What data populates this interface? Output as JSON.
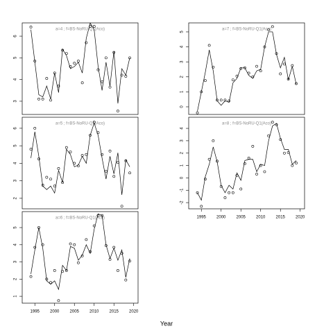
{
  "xlabel": "Year",
  "chart_data": [
    {
      "type": "line",
      "title": "a=4 ; f=BS-NoRU-Q1(Aco)",
      "x": [
        1994,
        1995,
        1996,
        1997,
        1998,
        1999,
        2000,
        2001,
        2002,
        2003,
        2004,
        2005,
        2006,
        2007,
        2008,
        2009,
        2010,
        2011,
        2012,
        2013,
        2014,
        2015,
        2016,
        2017,
        2018,
        2019
      ],
      "series": [
        {
          "mode": "markers",
          "color": "#000000",
          "values": [
            6.42,
            4.85,
            3.1,
            3.1,
            4.05,
            3.05,
            4.3,
            3.7,
            5.35,
            5.2,
            4.6,
            4.75,
            4.85,
            3.85,
            5.7,
            6.45,
            6.45,
            4.45,
            3.9,
            5.0,
            3.65,
            5.25,
            2.55,
            4.2,
            4.15,
            5.0
          ]
        },
        {
          "mode": "lines",
          "color": "#000000",
          "values": [
            6.3,
            4.8,
            3.3,
            3.2,
            3.7,
            3.1,
            4.3,
            3.4,
            5.4,
            5.1,
            4.5,
            4.6,
            4.8,
            4.3,
            5.9,
            6.6,
            6.3,
            4.6,
            3.5,
            4.8,
            3.7,
            5.3,
            2.9,
            4.5,
            4.2,
            5.0
          ]
        }
      ],
      "xlim": [
        1991.8,
        2021.1
      ],
      "ylim": [
        2.39,
        6.61
      ],
      "yticks": [
        3,
        4,
        5,
        6
      ]
    },
    {
      "type": "line",
      "title": "a=5 ; f=BS-NoRU-Q1(Aco)",
      "x": [
        1994,
        1995,
        1996,
        1997,
        1998,
        1999,
        2000,
        2001,
        2002,
        2003,
        2004,
        2005,
        2006,
        2007,
        2008,
        2009,
        2010,
        2011,
        2012,
        2013,
        2014,
        2015,
        2016,
        2017,
        2018,
        2019
      ],
      "series": [
        {
          "mode": "markers",
          "color": "#000000",
          "values": [
            4.8,
            6.0,
            4.25,
            2.75,
            3.2,
            3.1,
            2.7,
            3.7,
            2.9,
            4.9,
            4.65,
            4.0,
            3.85,
            4.45,
            4.5,
            5.6,
            6.35,
            5.75,
            4.5,
            3.55,
            4.7,
            3.25,
            4.05,
            1.55,
            4.15,
            3.45
          ]
        },
        {
          "mode": "lines",
          "color": "#000000",
          "values": [
            4.3,
            5.8,
            4.4,
            2.7,
            2.5,
            2.7,
            2.3,
            3.6,
            2.9,
            4.8,
            4.5,
            3.8,
            3.9,
            4.4,
            4.0,
            5.6,
            6.3,
            5.6,
            4.3,
            3.1,
            4.4,
            3.4,
            4.6,
            2.2,
            4.2,
            3.8
          ]
        }
      ],
      "xlim": [
        1991.8,
        2021.1
      ],
      "ylim": [
        1.4,
        6.63
      ],
      "yticks": [
        2,
        3,
        4,
        5,
        6
      ]
    },
    {
      "type": "line",
      "title": "a=6 ; f=BS-NoRU-Q1(Aco)",
      "x": [
        1994,
        1995,
        1996,
        1997,
        1998,
        1999,
        2000,
        2001,
        2002,
        2003,
        2004,
        2005,
        2006,
        2007,
        2008,
        2009,
        2010,
        2011,
        2012,
        2013,
        2014,
        2015,
        2016,
        2017,
        2018,
        2019
      ],
      "series": [
        {
          "mode": "markers",
          "color": "#000000",
          "values": [
            2.15,
            3.85,
            5.0,
            4.0,
            2.0,
            1.8,
            2.5,
            0.75,
            2.45,
            2.5,
            4.05,
            4.0,
            2.95,
            3.35,
            4.3,
            3.6,
            5.1,
            5.7,
            5.7,
            3.95,
            3.15,
            3.85,
            2.5,
            3.5,
            1.95,
            3.05
          ]
        },
        {
          "mode": "lines",
          "color": "#000000",
          "values": [
            2.3,
            3.7,
            5.0,
            3.8,
            1.9,
            1.7,
            1.9,
            1.4,
            2.8,
            2.5,
            3.9,
            3.8,
            3.1,
            3.4,
            4.0,
            3.5,
            4.9,
            5.8,
            5.7,
            4.0,
            3.2,
            3.8,
            3.1,
            3.7,
            2.1,
            3.2
          ]
        }
      ],
      "xlim": [
        1991.8,
        2021.1
      ],
      "ylim": [
        0.6,
        5.93
      ],
      "yticks": [
        1,
        2,
        3,
        4,
        5
      ],
      "xticks": [
        1995,
        2000,
        2005,
        2010,
        2015,
        2020
      ]
    },
    {
      "type": "line",
      "title": "a=7 ; f=BS-NoRU-Q1(Aco)",
      "x": [
        1994,
        1995,
        1996,
        1997,
        1998,
        1999,
        2000,
        2001,
        2002,
        2003,
        2004,
        2005,
        2006,
        2007,
        2008,
        2009,
        2010,
        2011,
        2012,
        2013,
        2014,
        2015,
        2016,
        2017,
        2018,
        2019
      ],
      "series": [
        {
          "mode": "markers",
          "color": "#000000",
          "values": [
            -0.4,
            1.0,
            1.75,
            4.1,
            2.65,
            0.45,
            0.45,
            0.45,
            0.4,
            1.8,
            2.05,
            2.55,
            2.6,
            2.25,
            2.0,
            2.7,
            2.4,
            4.0,
            5.15,
            5.35,
            3.55,
            2.2,
            2.85,
            1.85,
            2.75,
            1.55
          ]
        },
        {
          "mode": "lines",
          "color": "#000000",
          "values": [
            -0.3,
            1.0,
            2.3,
            3.8,
            2.4,
            0.4,
            0.1,
            0.4,
            0.3,
            1.6,
            1.9,
            2.6,
            2.6,
            2.1,
            1.9,
            2.4,
            2.5,
            4.0,
            5.0,
            5.0,
            3.5,
            2.6,
            3.3,
            1.8,
            2.7,
            1.5
          ]
        }
      ],
      "xlim": [
        1991.8,
        2021.1
      ],
      "ylim": [
        -0.51,
        5.6
      ],
      "yticks": [
        0,
        1,
        2,
        3,
        4,
        5
      ]
    },
    {
      "type": "line",
      "title": "a=8 ; f=BS-NoRU-Q1(Aco)",
      "x": [
        1994,
        1995,
        1996,
        1997,
        1998,
        1999,
        2000,
        2001,
        2002,
        2003,
        2004,
        2005,
        2006,
        2007,
        2008,
        2009,
        2010,
        2011,
        2012,
        2013,
        2014,
        2015,
        2016,
        2017,
        2018,
        2019
      ],
      "series": [
        {
          "mode": "markers",
          "color": "#000000",
          "values": [
            -1.2,
            -2.3,
            -0.1,
            1.5,
            3.0,
            1.35,
            -0.7,
            -1.6,
            -1.2,
            -1.2,
            0.2,
            -0.9,
            1.15,
            1.6,
            2.55,
            0.3,
            1.0,
            0.5,
            3.4,
            4.5,
            4.3,
            3.1,
            2.0,
            2.05,
            1.0,
            1.2
          ]
        },
        {
          "mode": "lines",
          "color": "#000000",
          "values": [
            -1.2,
            -1.8,
            0.1,
            1.1,
            2.5,
            1.3,
            -0.6,
            -1.2,
            -0.6,
            -0.9,
            0.4,
            -0.2,
            1.4,
            1.5,
            1.5,
            0.5,
            1.1,
            1.0,
            3.0,
            4.2,
            4.4,
            3.2,
            2.3,
            2.3,
            1.1,
            1.4
          ]
        }
      ],
      "xlim": [
        1991.8,
        2021.1
      ],
      "ylim": [
        -2.5,
        4.9
      ],
      "yticks": [
        -2,
        -1,
        0,
        1,
        2,
        3,
        4
      ],
      "xticks": [
        1995,
        2000,
        2005,
        2010,
        2015,
        2020
      ]
    }
  ]
}
